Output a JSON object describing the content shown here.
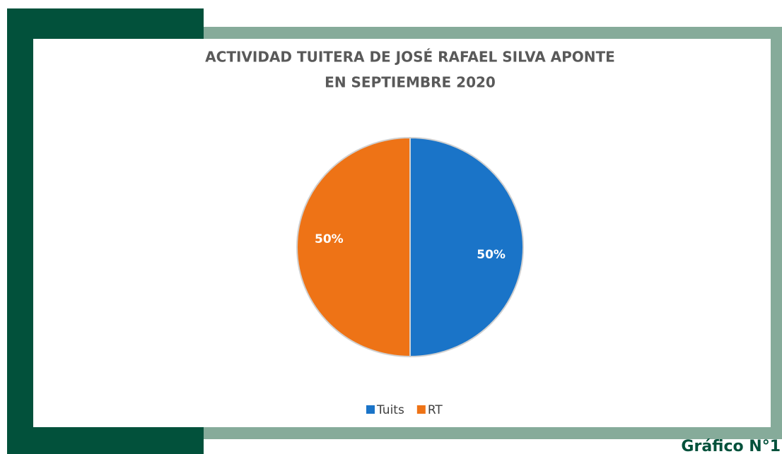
{
  "chart_data": {
    "type": "pie",
    "title": [
      "ACTIVIDAD TUITERA DE JOSÉ RAFAEL SILVA APONTE",
      "EN SEPTIEMBRE 2020"
    ],
    "categories": [
      "Tuits",
      "RT"
    ],
    "values": [
      50,
      50
    ],
    "value_labels": [
      "50%",
      "50%"
    ],
    "colors": [
      "#1a74c8",
      "#ee7316"
    ],
    "legend": "bottom"
  },
  "caption": "Gráfico N°1"
}
